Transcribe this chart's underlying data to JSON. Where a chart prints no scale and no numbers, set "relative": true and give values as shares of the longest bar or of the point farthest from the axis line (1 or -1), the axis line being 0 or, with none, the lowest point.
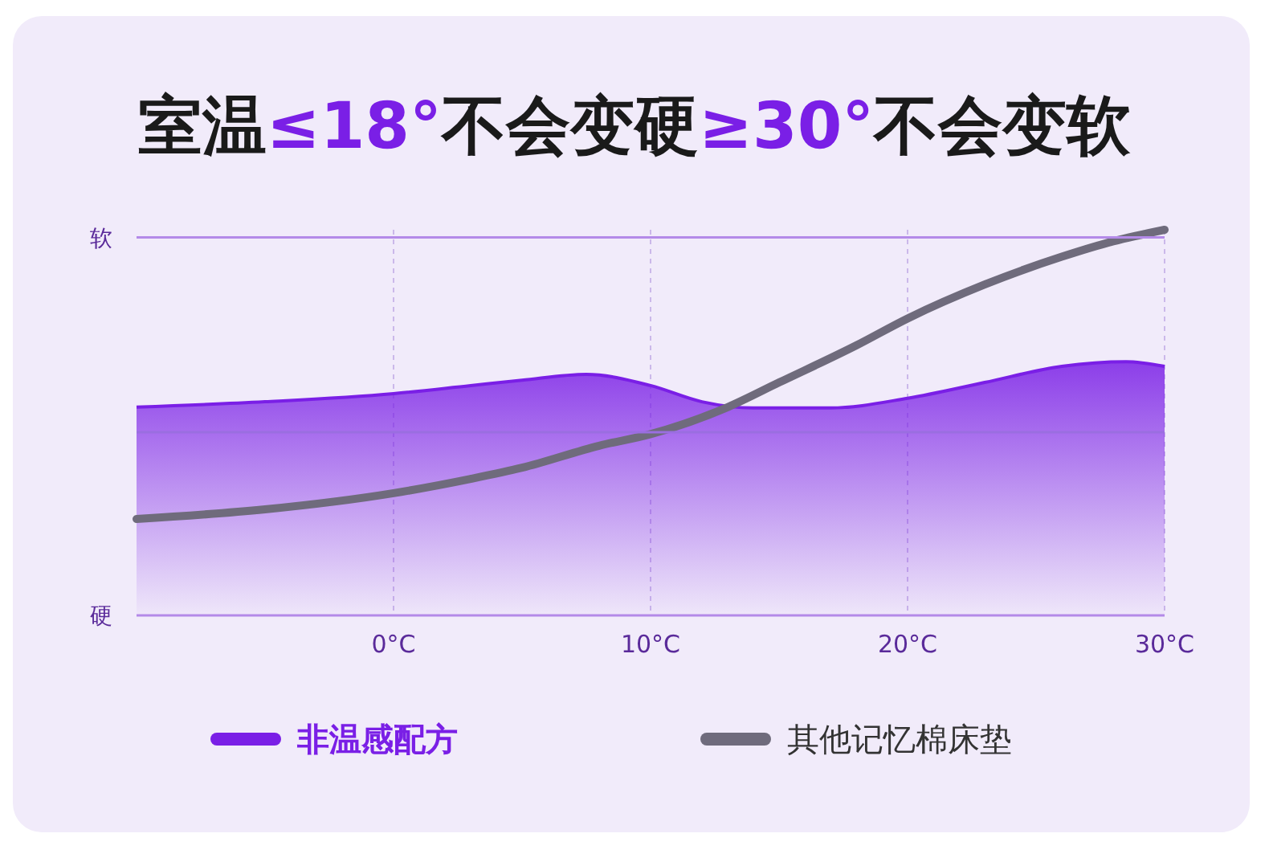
{
  "chart_data": {
    "type": "line",
    "title": "室温≤18°不会变硬≥30°不会变软",
    "relative": true,
    "xlim": [
      -10,
      30
    ],
    "xticks": [
      {
        "value": 0,
        "label": "0°C"
      },
      {
        "value": 10,
        "label": "10°C"
      },
      {
        "value": 20,
        "label": "20°C"
      },
      {
        "value": 30,
        "label": "30°C"
      }
    ],
    "grid": "x",
    "legend": "bottom",
    "ref_lines": [
      {
        "axis": "y",
        "value": 0.98,
        "label": "软",
        "color": "#b48ae8"
      },
      {
        "axis": "y",
        "value": 0.475,
        "color": "#9a6ee0"
      }
    ],
    "annotations": [
      "硬"
    ],
    "series": [
      {
        "name": "非温感配方",
        "type": "area",
        "color": "#7a1fe6",
        "x": [
          -10,
          -5,
          0,
          3,
          5,
          7.5,
          10,
          12,
          14,
          17,
          20,
          23,
          26,
          28.5,
          30
        ],
        "values": [
          0.54,
          0.554,
          0.575,
          0.596,
          0.61,
          0.625,
          0.596,
          0.554,
          0.538,
          0.538,
          0.563,
          0.604,
          0.646,
          0.658,
          0.646
        ]
      },
      {
        "name": "其他记忆棉床垫",
        "type": "line",
        "color": "#6f6b7c",
        "x": [
          -10,
          -5,
          0,
          3,
          5,
          8,
          10,
          13,
          15,
          18,
          20,
          23,
          26,
          28,
          30
        ],
        "values": [
          0.25,
          0.275,
          0.317,
          0.354,
          0.383,
          0.44,
          0.47,
          0.54,
          0.604,
          0.7,
          0.77,
          0.858,
          0.93,
          0.97,
          1
        ]
      }
    ]
  }
}
